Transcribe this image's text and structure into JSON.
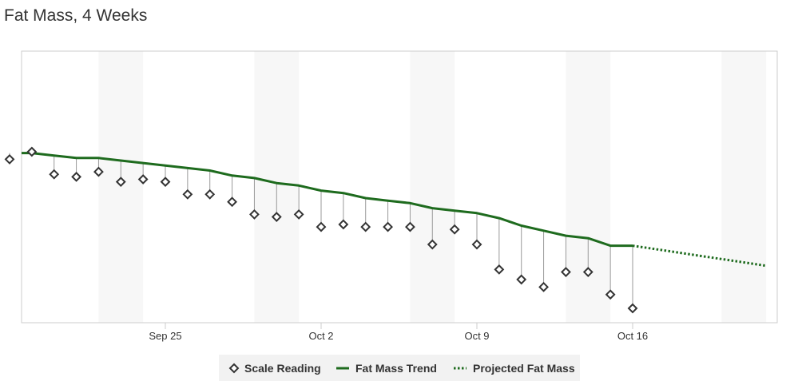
{
  "page": {
    "title": "Fat Mass, 4 Weeks"
  },
  "chart_data": {
    "type": "line",
    "title": "Fat Mass, 4 Weeks",
    "xlabel": "",
    "ylabel": "",
    "x_tick_labels": [
      "Sep 25",
      "Oct 2",
      "Oct 9",
      "Oct 16"
    ],
    "x_tick_dates": [
      "2023-09-25",
      "2023-10-02",
      "2023-10-09",
      "2023-10-16"
    ],
    "xlim": [
      "2023-09-18",
      "2023-10-22"
    ],
    "ylim": [
      0,
      100
    ],
    "y_axis_labels_shown": false,
    "grid": false,
    "weekend_bands": [
      [
        "2023-09-22",
        "2023-09-24"
      ],
      [
        "2023-09-29",
        "2023-10-01"
      ],
      [
        "2023-10-06",
        "2023-10-08"
      ],
      [
        "2023-10-13",
        "2023-10-15"
      ],
      [
        "2023-10-20",
        "2023-10-22"
      ]
    ],
    "legend": {
      "position": "bottom-center",
      "entries": [
        "Scale Reading",
        "Fat Mass Trend",
        "Projected Fat Mass"
      ]
    },
    "series": [
      {
        "name": "Scale Reading",
        "marker": "diamond",
        "color": "#333333",
        "x": [
          "2023-09-18",
          "2023-09-19",
          "2023-09-20",
          "2023-09-21",
          "2023-09-22",
          "2023-09-23",
          "2023-09-24",
          "2023-09-25",
          "2023-09-26",
          "2023-09-27",
          "2023-09-28",
          "2023-09-29",
          "2023-09-30",
          "2023-10-01",
          "2023-10-02",
          "2023-10-03",
          "2023-10-04",
          "2023-10-05",
          "2023-10-06",
          "2023-10-07",
          "2023-10-08",
          "2023-10-09",
          "2023-10-10",
          "2023-10-11",
          "2023-10-12",
          "2023-10-13",
          "2023-10-14",
          "2023-10-15",
          "2023-10-16"
        ],
        "values": [
          59.5,
          62.5,
          53.5,
          52.5,
          54.5,
          50.5,
          51.5,
          50.5,
          45.5,
          45.5,
          42.5,
          37.5,
          36.5,
          37.5,
          32.5,
          33.5,
          32.5,
          32.5,
          32.5,
          25.5,
          31.5,
          25.5,
          15.5,
          11.5,
          8.5,
          14.5,
          14.5,
          5.5,
          0
        ]
      },
      {
        "name": "Fat Mass Trend",
        "color": "#1e6b1e",
        "x": [
          "2023-09-17",
          "2023-09-18",
          "2023-09-19",
          "2023-09-20",
          "2023-09-21",
          "2023-09-22",
          "2023-09-23",
          "2023-09-24",
          "2023-09-25",
          "2023-09-26",
          "2023-09-27",
          "2023-09-28",
          "2023-09-29",
          "2023-09-30",
          "2023-10-01",
          "2023-10-02",
          "2023-10-03",
          "2023-10-04",
          "2023-10-05",
          "2023-10-06",
          "2023-10-07",
          "2023-10-08",
          "2023-10-09",
          "2023-10-10",
          "2023-10-11",
          "2023-10-12",
          "2023-10-13",
          "2023-10-14",
          "2023-10-15",
          "2023-10-16"
        ],
        "values": [
          62.0,
          62.0,
          62.0,
          61.0,
          60.0,
          60.0,
          59.0,
          58.0,
          57.0,
          56.0,
          55.0,
          53.0,
          52.0,
          50.0,
          49.0,
          47.0,
          46.0,
          44.0,
          43.0,
          42.0,
          40.0,
          39.0,
          38.0,
          36.0,
          33.0,
          31.0,
          29.0,
          28.0,
          25.0,
          25.0
        ]
      },
      {
        "name": "Projected Fat Mass",
        "color": "#1e6b1e",
        "style": "dotted",
        "x": [
          "2023-10-16",
          "2023-10-22"
        ],
        "values": [
          25.0,
          17.0
        ]
      }
    ]
  }
}
